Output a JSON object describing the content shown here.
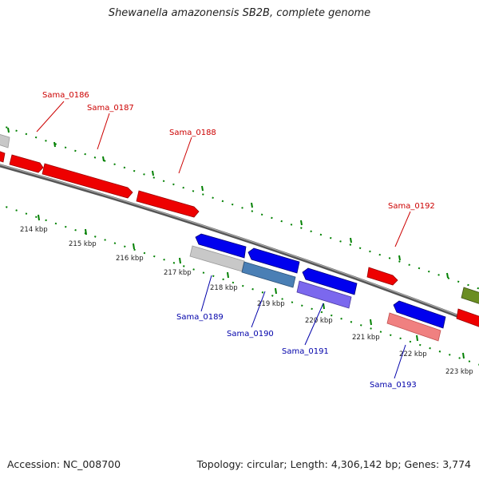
{
  "map": {
    "title": "Shewanella amazonensis SB2B, complete genome",
    "accession": "Accession: NC_008700",
    "topology": "Topology: circular; Length: 4,306,142 bp; Genes: 3,774",
    "colors": {
      "forward_gene": "#ff0000",
      "reverse_gene": "#0000ff",
      "tick": "#008000",
      "backbone": "#777777",
      "forward_label": "#cc0000",
      "reverse_label": "#0000aa"
    }
  },
  "scale": [
    "214 kbp",
    "215 kbp",
    "216 kbp",
    "217 kbp",
    "218 kbp",
    "219 kbp",
    "220 kbp",
    "221 kbp",
    "222 kbp",
    "223 kbp"
  ],
  "genes": {
    "forward": [
      "Sama_0186",
      "Sama_0187",
      "Sama_0188",
      "Sama_0192"
    ],
    "reverse": [
      "Sama_0189",
      "Sama_0190",
      "Sama_0191",
      "Sama_0193"
    ]
  }
}
